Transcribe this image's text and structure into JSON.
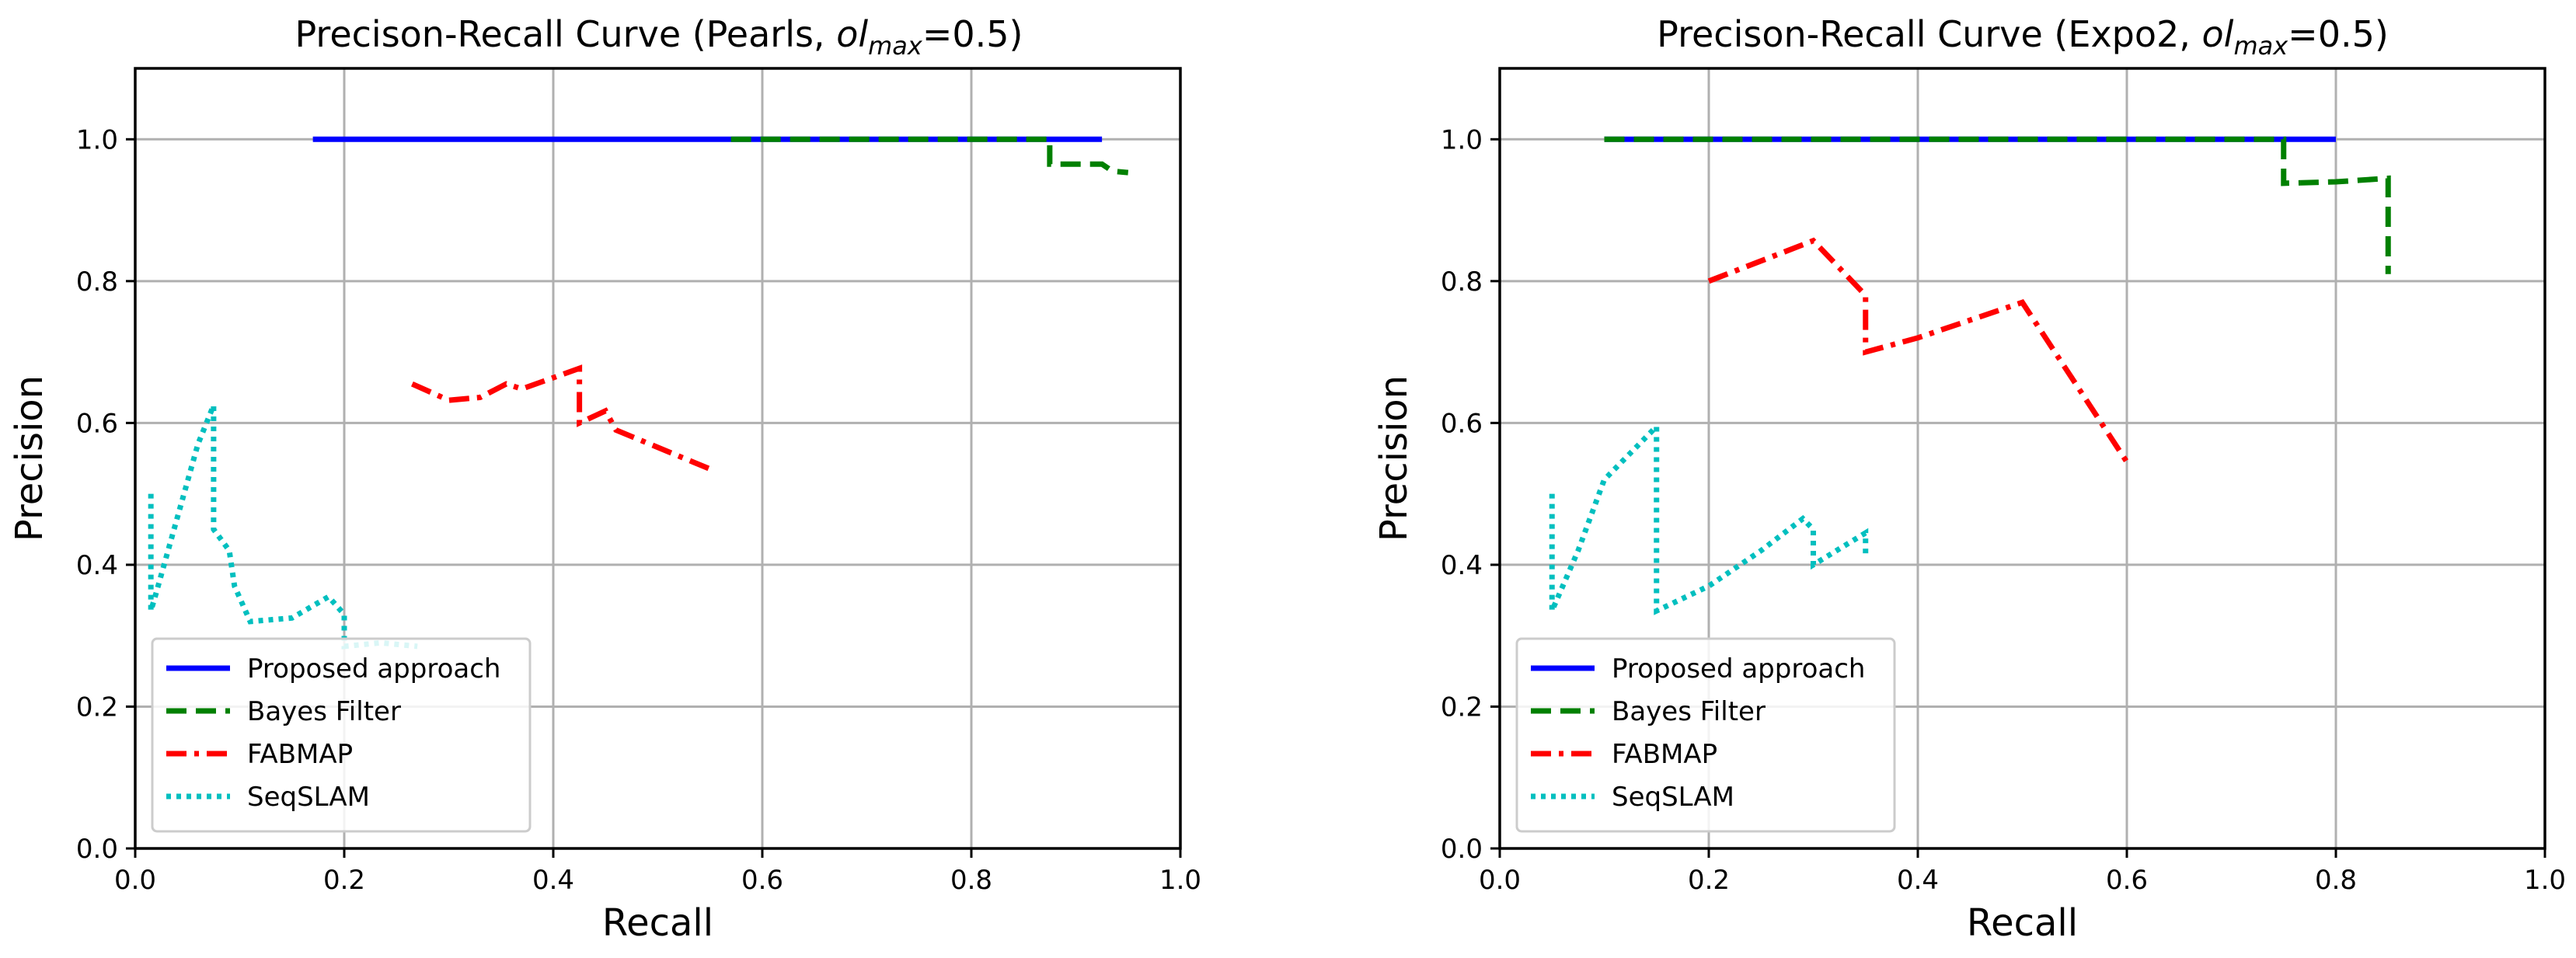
{
  "chart_data": [
    {
      "type": "line",
      "title": "Precison-Recall Curve (Pearls, ol_max=0.5)",
      "title_parts": {
        "prefix": "Precison-Recall Curve (Pearls, ",
        "var": "ol",
        "sub": "max",
        "suffix": "=0.5)"
      },
      "xlabel": "Recall",
      "ylabel": "Precision",
      "xlim": [
        0.0,
        1.0
      ],
      "ylim": [
        0.0,
        1.1
      ],
      "xticks": [
        0.0,
        0.2,
        0.4,
        0.6,
        0.8,
        1.0
      ],
      "yticks": [
        0.0,
        0.2,
        0.4,
        0.6,
        0.8,
        1.0
      ],
      "xtick_labels": [
        "0.0",
        "0.2",
        "0.4",
        "0.6",
        "0.8",
        "1.0"
      ],
      "ytick_labels": [
        "0.0",
        "0.2",
        "0.4",
        "0.6",
        "0.8",
        "1.0"
      ],
      "grid": true,
      "legend_position": "lower-left",
      "series": [
        {
          "name": "Proposed approach",
          "color": "#0000ff",
          "style": "solid",
          "x": [
            0.17,
            0.925
          ],
          "y": [
            1.0,
            1.0
          ]
        },
        {
          "name": "Bayes Filter",
          "color": "#008000",
          "style": "dashed",
          "x": [
            0.57,
            0.875,
            0.875,
            0.925,
            0.935,
            0.95
          ],
          "y": [
            1.0,
            1.0,
            0.965,
            0.965,
            0.955,
            0.953
          ]
        },
        {
          "name": "FABMAP",
          "color": "#ff0000",
          "style": "dashdot",
          "x": [
            0.265,
            0.3,
            0.33,
            0.355,
            0.37,
            0.425,
            0.425,
            0.45,
            0.46,
            0.55
          ],
          "y": [
            0.655,
            0.632,
            0.636,
            0.655,
            0.648,
            0.677,
            0.6,
            0.617,
            0.59,
            0.535
          ]
        },
        {
          "name": "SeqSLAM",
          "color": "#00bfbf",
          "style": "dotted",
          "x": [
            0.015,
            0.015,
            0.02,
            0.06,
            0.075,
            0.075,
            0.09,
            0.095,
            0.11,
            0.15,
            0.185,
            0.2,
            0.2,
            0.235,
            0.27
          ],
          "y": [
            0.5,
            0.335,
            0.36,
            0.57,
            0.625,
            0.45,
            0.42,
            0.37,
            0.32,
            0.325,
            0.355,
            0.33,
            0.285,
            0.29,
            0.285
          ]
        }
      ]
    },
    {
      "type": "line",
      "title": "Precison-Recall Curve (Expo2, ol_max=0.5)",
      "title_parts": {
        "prefix": "Precison-Recall Curve (Expo2, ",
        "var": "ol",
        "sub": "max",
        "suffix": "=0.5)"
      },
      "xlabel": "Recall",
      "ylabel": "Precision",
      "xlim": [
        0.0,
        1.0
      ],
      "ylim": [
        0.0,
        1.1
      ],
      "xticks": [
        0.0,
        0.2,
        0.4,
        0.6,
        0.8,
        1.0
      ],
      "yticks": [
        0.0,
        0.2,
        0.4,
        0.6,
        0.8,
        1.0
      ],
      "xtick_labels": [
        "0.0",
        "0.2",
        "0.4",
        "0.6",
        "0.8",
        "1.0"
      ],
      "ytick_labels": [
        "0.0",
        "0.2",
        "0.4",
        "0.6",
        "0.8",
        "1.0"
      ],
      "grid": true,
      "legend_position": "lower-left",
      "series": [
        {
          "name": "Proposed approach",
          "color": "#0000ff",
          "style": "solid",
          "x": [
            0.1,
            0.8
          ],
          "y": [
            1.0,
            1.0
          ]
        },
        {
          "name": "Bayes Filter",
          "color": "#008000",
          "style": "dashed",
          "x": [
            0.1,
            0.75,
            0.75,
            0.8,
            0.85,
            0.85
          ],
          "y": [
            1.0,
            1.0,
            0.938,
            0.94,
            0.945,
            0.81
          ]
        },
        {
          "name": "FABMAP",
          "color": "#ff0000",
          "style": "dashdot",
          "x": [
            0.2,
            0.3,
            0.35,
            0.35,
            0.4,
            0.5,
            0.6
          ],
          "y": [
            0.8,
            0.857,
            0.78,
            0.7,
            0.72,
            0.77,
            0.545
          ]
        },
        {
          "name": "SeqSLAM",
          "color": "#00bfbf",
          "style": "dotted",
          "x": [
            0.05,
            0.05,
            0.075,
            0.1,
            0.15,
            0.15,
            0.2,
            0.25,
            0.29,
            0.3,
            0.3,
            0.35,
            0.35
          ],
          "y": [
            0.5,
            0.335,
            0.42,
            0.52,
            0.595,
            0.335,
            0.37,
            0.42,
            0.465,
            0.45,
            0.4,
            0.445,
            0.41
          ]
        }
      ]
    }
  ]
}
